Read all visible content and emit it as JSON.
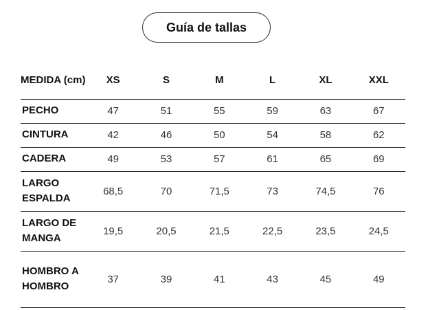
{
  "title": "Guía de tallas",
  "table": {
    "header": {
      "measure_label": "MEDIDA (cm)",
      "sizes": [
        "XS",
        "S",
        "M",
        "L",
        "XL",
        "XXL"
      ]
    },
    "rows": [
      {
        "label": "PECHO",
        "values": [
          "47",
          "51",
          "55",
          "59",
          "63",
          "67"
        ]
      },
      {
        "label": "CINTURA",
        "values": [
          "42",
          "46",
          "50",
          "54",
          "58",
          "62"
        ]
      },
      {
        "label": "CADERA",
        "values": [
          "49",
          "53",
          "57",
          "61",
          "65",
          "69"
        ]
      },
      {
        "label": "LARGO ESPALDA",
        "values": [
          "68,5",
          "70",
          "71,5",
          "73",
          "74,5",
          "76"
        ]
      },
      {
        "label": "LARGO DE MANGA",
        "values": [
          "19,5",
          "20,5",
          "21,5",
          "22,5",
          "23,5",
          "24,5"
        ]
      },
      {
        "label": "HOMBRO A HOMBRO",
        "values": [
          "37",
          "39",
          "41",
          "43",
          "45",
          "49"
        ]
      }
    ]
  }
}
